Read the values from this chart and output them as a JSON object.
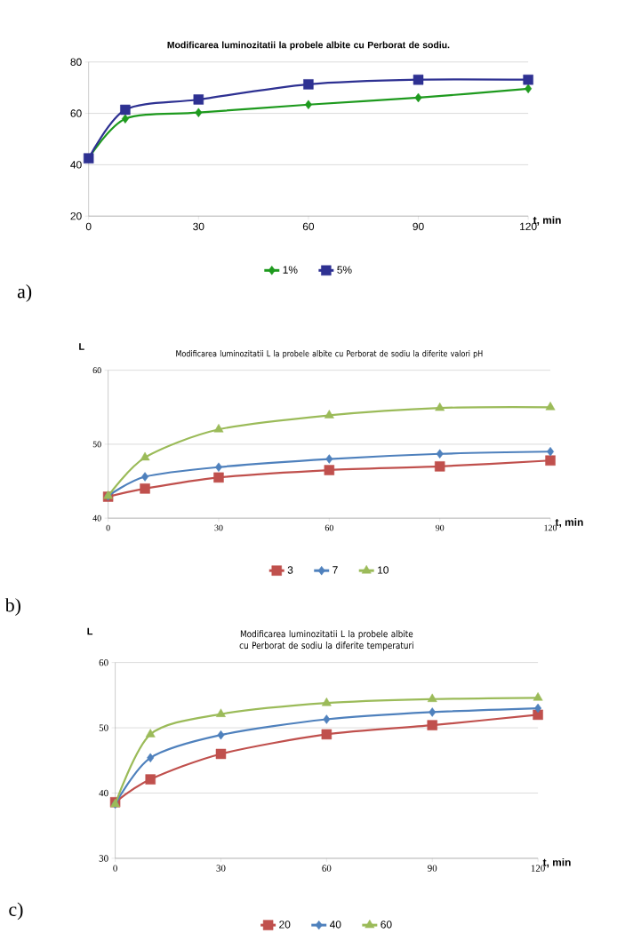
{
  "chart_data": [
    {
      "type": "line",
      "title": "Modificarea luminozitatii  la probele albite cu Perborat de sodiu.",
      "xlabel": "t, min",
      "annotations": [
        "a)"
      ],
      "x": [
        0,
        10,
        30,
        60,
        90,
        120
      ],
      "xlim": [
        0,
        120
      ],
      "xticks": [
        0,
        30,
        60,
        90,
        120
      ],
      "ylim": [
        20,
        80
      ],
      "yticks": [
        20,
        40,
        60,
        80
      ],
      "grid": "y",
      "legend": "bottom",
      "line_style": "solid",
      "series": [
        {
          "name": "1%",
          "color": "#1e9a1e",
          "marker": "diamond",
          "values": [
            42.5,
            57.9,
            60.3,
            63.4,
            66.1,
            69.6
          ]
        },
        {
          "name": "5%",
          "color": "#2e3192",
          "marker": "square",
          "values": [
            42.5,
            61.4,
            65.4,
            71.3,
            73.1,
            73.1
          ]
        }
      ]
    },
    {
      "type": "line",
      "title": "Modificarea luminozitatii L  la probele albite cu Perborat de sodiu la diferite valori pH",
      "xlabel": "t, min",
      "ylabel": "L",
      "annotations": [
        "b)"
      ],
      "x": [
        0,
        10,
        30,
        60,
        90,
        120
      ],
      "xlim": [
        0,
        120
      ],
      "xticks": [
        0,
        30,
        60,
        90,
        120
      ],
      "ylim": [
        40,
        60
      ],
      "yticks": [
        40,
        50,
        60
      ],
      "grid": "y",
      "legend": "bottom",
      "line_style": "solid",
      "series": [
        {
          "name": "3",
          "color": "#c0504d",
          "marker": "square",
          "values": [
            42.9,
            44.0,
            45.5,
            46.5,
            47.0,
            47.8
          ]
        },
        {
          "name": "7",
          "color": "#4f81bd",
          "marker": "diamond",
          "values": [
            43.0,
            45.6,
            46.9,
            48.0,
            48.7,
            49.0
          ]
        },
        {
          "name": "10",
          "color": "#9bbb59",
          "marker": "triangle",
          "values": [
            43.0,
            48.2,
            52.0,
            53.9,
            54.9,
            55.0
          ]
        }
      ]
    },
    {
      "type": "line",
      "title": "Modificarea luminozitatii L  la probele albite cu Perborat de sodiu   la diferite temperaturi",
      "xlabel": "t, min",
      "ylabel": "L",
      "annotations": [
        "c)"
      ],
      "x": [
        0,
        10,
        30,
        60,
        90,
        120
      ],
      "xlim": [
        0,
        120
      ],
      "xticks": [
        0,
        30,
        60,
        90,
        120
      ],
      "ylim": [
        30,
        60
      ],
      "yticks": [
        30,
        40,
        50,
        60
      ],
      "grid": "y",
      "legend": "bottom",
      "line_style": "solid",
      "series": [
        {
          "name": "20",
          "color": "#c0504d",
          "marker": "square",
          "values": [
            38.6,
            42.1,
            46.0,
            49.0,
            50.4,
            52.0
          ]
        },
        {
          "name": "40",
          "color": "#4f81bd",
          "marker": "diamond",
          "values": [
            38.3,
            45.4,
            48.9,
            51.3,
            52.4,
            53.0
          ]
        },
        {
          "name": "60",
          "color": "#9bbb59",
          "marker": "triangle",
          "values": [
            38.3,
            49.0,
            52.1,
            53.8,
            54.4,
            54.6
          ]
        }
      ]
    }
  ]
}
